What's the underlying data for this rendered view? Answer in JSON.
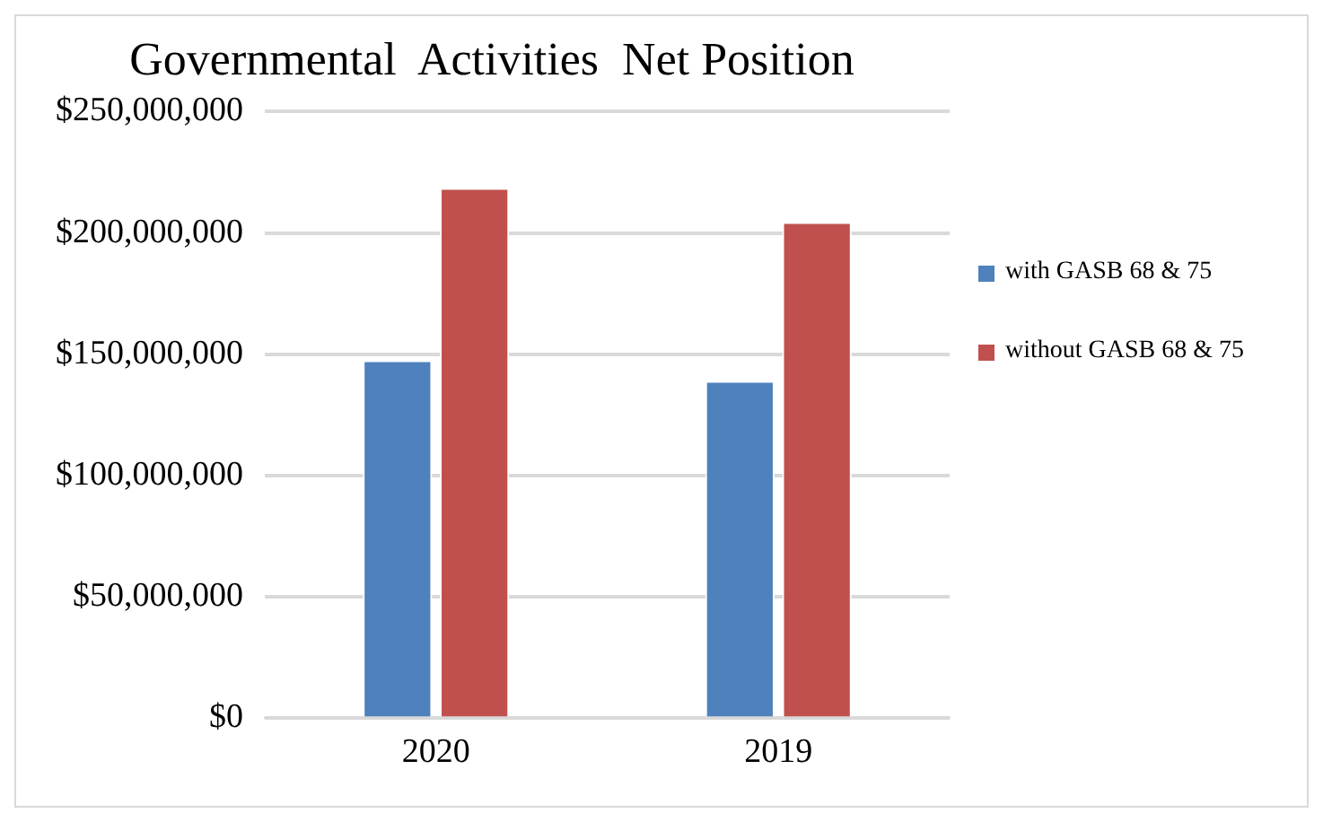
{
  "chart_data": {
    "type": "bar",
    "title": "Governmental  Activities  Net Position",
    "categories": [
      "2020",
      "2019"
    ],
    "series": [
      {
        "name": "with GASB 68 & 75",
        "color": "#4f81bd",
        "values": [
          147500000,
          139000000
        ]
      },
      {
        "name": "without GASB 68 & 75",
        "color": "#c0504d",
        "values": [
          218500000,
          204500000
        ]
      }
    ],
    "ylim": [
      0,
      250000000
    ],
    "yticks": [
      {
        "value": 0,
        "label": "$0"
      },
      {
        "value": 50000000,
        "label": "$50,000,000"
      },
      {
        "value": 100000000,
        "label": "$100,000,000"
      },
      {
        "value": 150000000,
        "label": "$150,000,000"
      },
      {
        "value": 200000000,
        "label": "$200,000,000"
      },
      {
        "value": 250000000,
        "label": "$250,000,000"
      }
    ],
    "grid": "y",
    "legend": "right"
  }
}
